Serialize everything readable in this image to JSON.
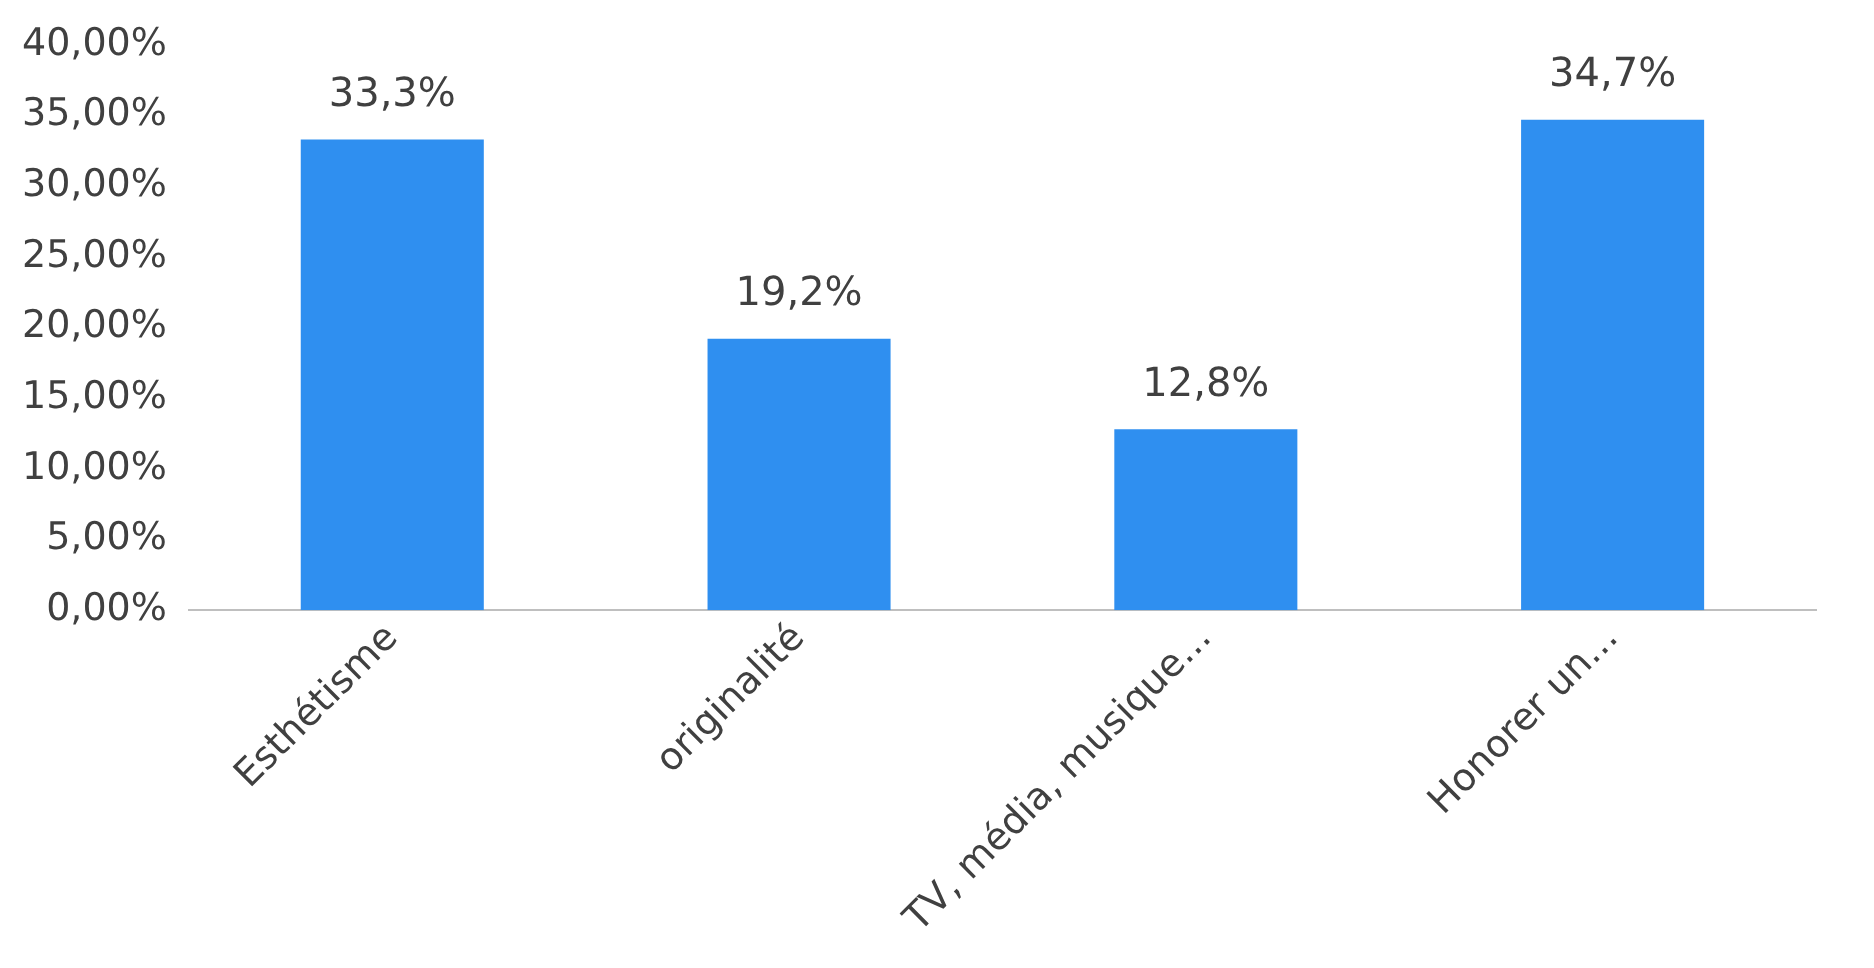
{
  "chart_data": {
    "type": "bar",
    "categories": [
      "Esthétisme",
      "originalité",
      "TV, média, musique...",
      "Honorer un..."
    ],
    "values": [
      33.3,
      19.2,
      12.8,
      34.7
    ],
    "color": "#2f8ff0",
    "value_labels": [
      "33,3%",
      "19,2%",
      "12,8%",
      "34,7%"
    ],
    "ylim": [
      0,
      40
    ],
    "yticks": [
      {
        "value": 0,
        "label": "0,00%"
      },
      {
        "value": 5,
        "label": "5,00%"
      },
      {
        "value": 10,
        "label": "10,00%"
      },
      {
        "value": 15,
        "label": "15,00%"
      },
      {
        "value": 20,
        "label": "20,00%"
      },
      {
        "value": 25,
        "label": "25,00%"
      },
      {
        "value": 30,
        "label": "30,00%"
      },
      {
        "value": 35,
        "label": "35,00%"
      },
      {
        "value": 40,
        "label": "40,00%"
      }
    ],
    "grid": false,
    "legend": false
  }
}
